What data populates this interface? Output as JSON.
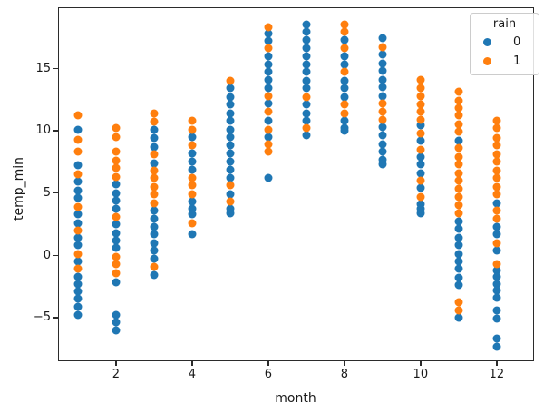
{
  "figure": {
    "xlabel": "month",
    "ylabel": "temp_min"
  },
  "legend": {
    "title": "rain",
    "entries": [
      {
        "label": "0",
        "color": "#1f77b4"
      },
      {
        "label": "1",
        "color": "#ff7f0e"
      }
    ]
  },
  "chart_data": {
    "type": "scatter",
    "title": "",
    "xlabel": "month",
    "ylabel": "temp_min",
    "xlim": [
      0.48,
      12.98
    ],
    "ylim": [
      -8.5,
      19.9
    ],
    "xticks": [
      2,
      4,
      6,
      8,
      10,
      12
    ],
    "yticks": [
      -5,
      0,
      5,
      10,
      15
    ],
    "grid": false,
    "legend_title": "rain",
    "legend_position": "upper right",
    "marker_size_px": 9,
    "series": [
      {
        "name": "0",
        "color": "#1f77b4",
        "points": [
          [
            1,
            10.1
          ],
          [
            1,
            7.2
          ],
          [
            1,
            5.9
          ],
          [
            1,
            5.2
          ],
          [
            1,
            4.6
          ],
          [
            1,
            3.3
          ],
          [
            1,
            2.6
          ],
          [
            1,
            1.4
          ],
          [
            1,
            0.8
          ],
          [
            1,
            -0.5
          ],
          [
            1,
            -1.7
          ],
          [
            1,
            -2.3
          ],
          [
            1,
            -2.9
          ],
          [
            1,
            -3.5
          ],
          [
            1,
            -4.1
          ],
          [
            1,
            -4.8
          ],
          [
            2,
            5.7
          ],
          [
            2,
            5.0
          ],
          [
            2,
            4.4
          ],
          [
            2,
            3.7
          ],
          [
            2,
            2.5
          ],
          [
            2,
            1.8
          ],
          [
            2,
            1.2
          ],
          [
            2,
            0.6
          ],
          [
            2,
            -2.2
          ],
          [
            2,
            -4.8
          ],
          [
            2,
            -5.4
          ],
          [
            2,
            -6.0
          ],
          [
            3,
            10.1
          ],
          [
            3,
            9.4
          ],
          [
            3,
            8.7
          ],
          [
            3,
            7.4
          ],
          [
            3,
            3.6
          ],
          [
            3,
            2.9
          ],
          [
            3,
            2.3
          ],
          [
            3,
            1.7
          ],
          [
            3,
            1.0
          ],
          [
            3,
            0.4
          ],
          [
            3,
            -0.3
          ],
          [
            3,
            -1.6
          ],
          [
            4,
            9.5
          ],
          [
            4,
            8.2
          ],
          [
            4,
            7.5
          ],
          [
            4,
            6.9
          ],
          [
            4,
            4.3
          ],
          [
            4,
            3.7
          ],
          [
            4,
            3.3
          ],
          [
            4,
            1.7
          ],
          [
            5,
            13.4
          ],
          [
            5,
            12.7
          ],
          [
            5,
            12.1
          ],
          [
            5,
            11.4
          ],
          [
            5,
            10.8
          ],
          [
            5,
            10.1
          ],
          [
            5,
            9.5
          ],
          [
            5,
            8.8
          ],
          [
            5,
            8.2
          ],
          [
            5,
            7.5
          ],
          [
            5,
            6.9
          ],
          [
            5,
            6.2
          ],
          [
            5,
            4.9
          ],
          [
            5,
            3.7
          ],
          [
            5,
            3.4
          ],
          [
            6,
            17.8
          ],
          [
            6,
            17.2
          ],
          [
            6,
            16.0
          ],
          [
            6,
            15.3
          ],
          [
            6,
            14.7
          ],
          [
            6,
            14.1
          ],
          [
            6,
            13.4
          ],
          [
            6,
            12.2
          ],
          [
            6,
            10.8
          ],
          [
            6,
            9.5
          ],
          [
            6,
            6.2
          ],
          [
            7,
            18.5
          ],
          [
            7,
            17.9
          ],
          [
            7,
            17.3
          ],
          [
            7,
            16.6
          ],
          [
            7,
            16.0
          ],
          [
            7,
            15.3
          ],
          [
            7,
            14.7
          ],
          [
            7,
            14.0
          ],
          [
            7,
            13.4
          ],
          [
            7,
            12.1
          ],
          [
            7,
            11.4
          ],
          [
            7,
            10.8
          ],
          [
            7,
            9.6
          ],
          [
            8,
            17.3
          ],
          [
            8,
            16.0
          ],
          [
            8,
            15.3
          ],
          [
            8,
            14.0
          ],
          [
            8,
            13.4
          ],
          [
            8,
            12.7
          ],
          [
            8,
            10.8
          ],
          [
            8,
            10.2
          ],
          [
            8,
            10.0
          ],
          [
            9,
            17.4
          ],
          [
            9,
            16.1
          ],
          [
            9,
            15.4
          ],
          [
            9,
            14.8
          ],
          [
            9,
            14.1
          ],
          [
            9,
            13.5
          ],
          [
            9,
            12.8
          ],
          [
            9,
            10.3
          ],
          [
            9,
            9.6
          ],
          [
            9,
            8.9
          ],
          [
            9,
            8.3
          ],
          [
            9,
            7.7
          ],
          [
            9,
            7.3
          ],
          [
            10,
            10.4
          ],
          [
            10,
            9.2
          ],
          [
            10,
            7.9
          ],
          [
            10,
            7.3
          ],
          [
            10,
            6.6
          ],
          [
            10,
            5.4
          ],
          [
            10,
            4.1
          ],
          [
            10,
            3.7
          ],
          [
            10,
            3.4
          ],
          [
            11,
            9.2
          ],
          [
            11,
            2.7
          ],
          [
            11,
            2.1
          ],
          [
            11,
            1.4
          ],
          [
            11,
            0.8
          ],
          [
            11,
            0.1
          ],
          [
            11,
            -0.5
          ],
          [
            11,
            -1.1
          ],
          [
            11,
            -1.8
          ],
          [
            11,
            -2.4
          ],
          [
            11,
            -5.0
          ],
          [
            12,
            4.2
          ],
          [
            12,
            2.3
          ],
          [
            12,
            1.7
          ],
          [
            12,
            0.4
          ],
          [
            12,
            -1.2
          ],
          [
            12,
            -1.7
          ],
          [
            12,
            -2.3
          ],
          [
            12,
            -2.8
          ],
          [
            12,
            -3.4
          ],
          [
            12,
            -4.4
          ],
          [
            12,
            -5.1
          ],
          [
            12,
            -6.7
          ],
          [
            12,
            -7.3
          ]
        ]
      },
      {
        "name": "1",
        "color": "#ff7f0e",
        "points": [
          [
            1,
            11.2
          ],
          [
            1,
            9.3
          ],
          [
            1,
            8.3
          ],
          [
            1,
            6.5
          ],
          [
            1,
            3.9
          ],
          [
            1,
            2.0
          ],
          [
            1,
            0.1
          ],
          [
            1,
            -1.1
          ],
          [
            2,
            10.2
          ],
          [
            2,
            9.5
          ],
          [
            2,
            8.3
          ],
          [
            2,
            7.6
          ],
          [
            2,
            7.0
          ],
          [
            2,
            6.3
          ],
          [
            2,
            3.1
          ],
          [
            2,
            -0.1
          ],
          [
            2,
            -0.7
          ],
          [
            2,
            -1.4
          ],
          [
            3,
            11.4
          ],
          [
            3,
            10.7
          ],
          [
            3,
            8.1
          ],
          [
            3,
            6.8
          ],
          [
            3,
            6.2
          ],
          [
            3,
            5.5
          ],
          [
            3,
            4.9
          ],
          [
            3,
            4.2
          ],
          [
            3,
            -0.9
          ],
          [
            4,
            10.8
          ],
          [
            4,
            10.1
          ],
          [
            4,
            8.8
          ],
          [
            4,
            6.2
          ],
          [
            4,
            5.6
          ],
          [
            4,
            4.9
          ],
          [
            4,
            2.6
          ],
          [
            5,
            14.0
          ],
          [
            5,
            5.6
          ],
          [
            5,
            4.3
          ],
          [
            6,
            18.3
          ],
          [
            6,
            16.6
          ],
          [
            6,
            12.8
          ],
          [
            6,
            11.5
          ],
          [
            6,
            10.1
          ],
          [
            6,
            8.9
          ],
          [
            6,
            8.3
          ],
          [
            7,
            12.7
          ],
          [
            7,
            10.2
          ],
          [
            8,
            18.5
          ],
          [
            8,
            17.9
          ],
          [
            8,
            16.6
          ],
          [
            8,
            14.7
          ],
          [
            8,
            12.1
          ],
          [
            8,
            11.4
          ],
          [
            9,
            16.7
          ],
          [
            9,
            12.2
          ],
          [
            9,
            11.5
          ],
          [
            9,
            10.9
          ],
          [
            10,
            14.1
          ],
          [
            10,
            13.4
          ],
          [
            10,
            12.8
          ],
          [
            10,
            12.1
          ],
          [
            10,
            11.5
          ],
          [
            10,
            10.9
          ],
          [
            10,
            9.8
          ],
          [
            10,
            8.5
          ],
          [
            10,
            6.0
          ],
          [
            10,
            4.7
          ],
          [
            11,
            13.1
          ],
          [
            11,
            12.4
          ],
          [
            11,
            11.8
          ],
          [
            11,
            11.2
          ],
          [
            11,
            10.5
          ],
          [
            11,
            9.9
          ],
          [
            11,
            8.6
          ],
          [
            11,
            7.9
          ],
          [
            11,
            7.3
          ],
          [
            11,
            6.6
          ],
          [
            11,
            6.0
          ],
          [
            11,
            5.3
          ],
          [
            11,
            4.7
          ],
          [
            11,
            4.0
          ],
          [
            11,
            3.4
          ],
          [
            11,
            -3.8
          ],
          [
            11,
            -4.4
          ],
          [
            12,
            10.8
          ],
          [
            12,
            10.2
          ],
          [
            12,
            9.4
          ],
          [
            12,
            8.8
          ],
          [
            12,
            8.1
          ],
          [
            12,
            7.5
          ],
          [
            12,
            6.8
          ],
          [
            12,
            6.2
          ],
          [
            12,
            5.5
          ],
          [
            12,
            4.9
          ],
          [
            12,
            3.6
          ],
          [
            12,
            2.9
          ],
          [
            12,
            1.0
          ],
          [
            12,
            -0.7
          ]
        ]
      }
    ]
  }
}
